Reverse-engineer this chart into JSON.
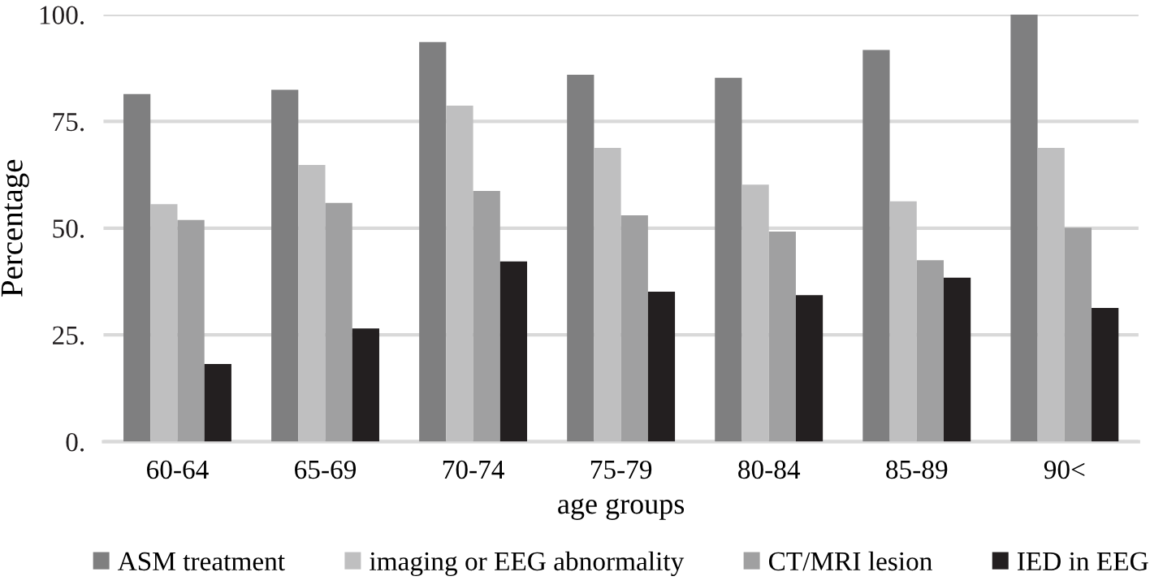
{
  "chart_data": {
    "type": "bar",
    "xlabel": "age groups",
    "ylabel": "Percentage",
    "categories": [
      "60-64",
      "65-69",
      "70-74",
      "75-79",
      "80-84",
      "85-89",
      "90<"
    ],
    "series": [
      {
        "name": "ASM treatment",
        "color": "#7f7f80",
        "values": [
          81.4,
          82.4,
          93.6,
          85.9,
          85.2,
          91.7,
          100
        ]
      },
      {
        "name": "imaging or EEG abnormality",
        "color": "#bfbfc0",
        "values": [
          55.6,
          64.8,
          78.7,
          68.8,
          60.2,
          56.3,
          68.8
        ]
      },
      {
        "name": "CT/MRI lesion",
        "color": "#a0a0a1",
        "values": [
          51.9,
          55.9,
          58.7,
          53.0,
          49.2,
          42.5,
          50.1
        ]
      },
      {
        "name": "IED in EEG",
        "color": "#231f20",
        "values": [
          18.2,
          26.5,
          42.2,
          35.1,
          34.3,
          38.4,
          31.3
        ]
      }
    ],
    "ylim": [
      0,
      100
    ],
    "yticks": [
      {
        "value": 0,
        "label": "0."
      },
      {
        "value": 25,
        "label": "25."
      },
      {
        "value": 50,
        "label": "50."
      },
      {
        "value": 75,
        "label": "75."
      },
      {
        "value": 100,
        "label": "100."
      }
    ],
    "grid": "y",
    "legend": "bottom"
  }
}
